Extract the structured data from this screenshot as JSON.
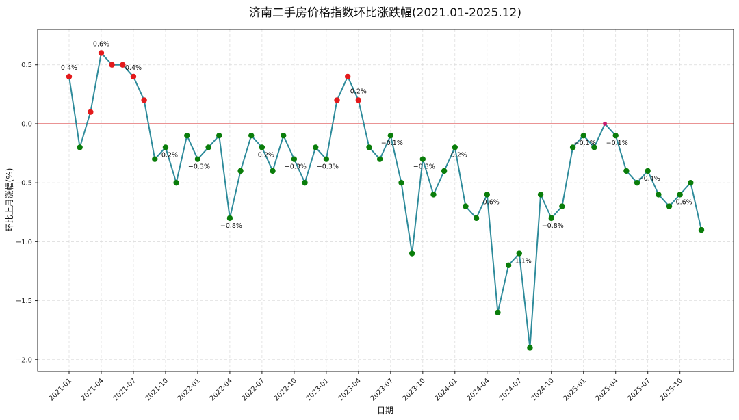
{
  "chart_data": {
    "type": "line",
    "title": "济南二手房价格指数环比涨跌幅(2021.01-2025.12)",
    "xlabel": "日期",
    "ylabel": "环比上月涨幅(%)",
    "ylim": [
      -2.1,
      0.8
    ],
    "yticks": [
      "0.5",
      "0.0",
      "−0.5",
      "−1.0",
      "−1.5",
      "−2.0"
    ],
    "ytick_values": [
      0.5,
      0.0,
      -0.5,
      -1.0,
      -1.5,
      -2.0
    ],
    "xtick_labels": [
      "2021-01",
      "2021-04",
      "2021-07",
      "2021-10",
      "2022-01",
      "2022-04",
      "2022-07",
      "2022-10",
      "2023-01",
      "2023-04",
      "2023-07",
      "2023-10",
      "2024-01",
      "2024-04",
      "2024-07",
      "2024-10",
      "2025-01",
      "2025-04",
      "2025-07",
      "2025-10"
    ],
    "xtick_index": [
      0,
      3,
      6,
      9,
      12,
      15,
      18,
      21,
      24,
      27,
      30,
      33,
      36,
      39,
      42,
      45,
      48,
      51,
      54,
      57
    ],
    "grid": true,
    "reference_line": 0.0,
    "colors": {
      "line": "#2e8b9b",
      "positive": "#e31a1c",
      "negative": "#0a7d0a",
      "zero": "#c7196b",
      "refline": "#d62728"
    },
    "x": [
      "2021-01",
      "2021-02",
      "2021-03",
      "2021-04",
      "2021-05",
      "2021-06",
      "2021-07",
      "2021-08",
      "2021-09",
      "2021-10",
      "2021-11",
      "2021-12",
      "2022-01",
      "2022-02",
      "2022-03",
      "2022-04",
      "2022-05",
      "2022-06",
      "2022-07",
      "2022-08",
      "2022-09",
      "2022-10",
      "2022-11",
      "2022-12",
      "2023-01",
      "2023-02",
      "2023-03",
      "2023-04",
      "2023-05",
      "2023-06",
      "2023-07",
      "2023-08",
      "2023-09",
      "2023-10",
      "2023-11",
      "2023-12",
      "2024-01",
      "2024-02",
      "2024-03",
      "2024-04",
      "2024-05",
      "2024-06",
      "2024-07",
      "2024-08",
      "2024-09",
      "2024-10",
      "2024-11",
      "2024-12",
      "2025-01",
      "2025-02",
      "2025-03",
      "2025-04",
      "2025-05",
      "2025-06",
      "2025-07",
      "2025-08",
      "2025-09",
      "2025-10",
      "2025-11",
      "2025-12"
    ],
    "values": [
      0.4,
      -0.2,
      0.1,
      0.6,
      0.5,
      0.5,
      0.4,
      0.2,
      -0.3,
      -0.2,
      -0.5,
      -0.1,
      -0.3,
      -0.2,
      -0.1,
      -0.8,
      -0.4,
      -0.1,
      -0.2,
      -0.4,
      -0.1,
      -0.3,
      -0.5,
      -0.2,
      -0.3,
      0.2,
      0.4,
      0.2,
      -0.2,
      -0.3,
      -0.1,
      -0.5,
      -1.1,
      -0.3,
      -0.6,
      -0.4,
      -0.2,
      -0.7,
      -0.8,
      -0.6,
      -1.6,
      -1.2,
      -1.1,
      -1.9,
      -0.6,
      -0.8,
      -0.7,
      -0.2,
      -0.1,
      -0.2,
      0.0,
      -0.1,
      -0.4,
      -0.5,
      -0.4,
      -0.6,
      -0.7,
      -0.6,
      -0.5,
      -0.9
    ],
    "annotations": [
      {
        "index": 0,
        "text": "0.4%"
      },
      {
        "index": 3,
        "text": "0.6%"
      },
      {
        "index": 6,
        "text": "0.4%"
      },
      {
        "index": 9,
        "text": "−0.2%"
      },
      {
        "index": 12,
        "text": "−0.3%"
      },
      {
        "index": 15,
        "text": "−0.8%"
      },
      {
        "index": 18,
        "text": "−0.2%"
      },
      {
        "index": 21,
        "text": "−0.3%"
      },
      {
        "index": 24,
        "text": "−0.3%"
      },
      {
        "index": 27,
        "text": "0.2%"
      },
      {
        "index": 30,
        "text": "−0.1%"
      },
      {
        "index": 33,
        "text": "−0.3%"
      },
      {
        "index": 36,
        "text": "−0.2%"
      },
      {
        "index": 39,
        "text": "−0.6%"
      },
      {
        "index": 42,
        "text": "−1.1%"
      },
      {
        "index": 45,
        "text": "−0.8%"
      },
      {
        "index": 48,
        "text": "−0.1%"
      },
      {
        "index": 51,
        "text": "−0.1%"
      },
      {
        "index": 54,
        "text": "−0.4%"
      },
      {
        "index": 57,
        "text": "−0.6%"
      }
    ]
  }
}
